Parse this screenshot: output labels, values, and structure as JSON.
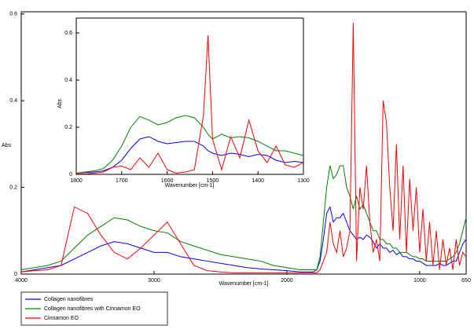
{
  "chart_data": [
    {
      "type": "line",
      "xlabel": "Wavenumber [cm-1]",
      "ylabel": "Abs",
      "x": [
        4000,
        3900,
        3800,
        3700,
        3600,
        3500,
        3400,
        3300,
        3200,
        3100,
        3000,
        2900,
        2800,
        2700,
        2600,
        2500,
        2400,
        2300,
        2200,
        2100,
        2000,
        1900,
        1800,
        1775,
        1750,
        1725,
        1700,
        1675,
        1650,
        1625,
        1600,
        1575,
        1550,
        1525,
        1500,
        1475,
        1450,
        1425,
        1400,
        1375,
        1350,
        1325,
        1300,
        1275,
        1250,
        1225,
        1200,
        1175,
        1150,
        1125,
        1100,
        1075,
        1050,
        1025,
        1000,
        975,
        950,
        925,
        900,
        875,
        850,
        825,
        800,
        775,
        750,
        725,
        700,
        675,
        650
      ],
      "xlim": [
        4000,
        650
      ],
      "xticks": [
        4000,
        3000,
        2000,
        1000,
        650
      ],
      "ylim": [
        0,
        0.605
      ],
      "yticks": [
        0,
        0.2,
        0.4,
        0.6
      ],
      "series": [
        {
          "name": "Collagen nanofibres",
          "color": "#0000ff",
          "values": [
            0.005,
            0.01,
            0.015,
            0.02,
            0.035,
            0.05,
            0.065,
            0.075,
            0.07,
            0.06,
            0.05,
            0.05,
            0.04,
            0.035,
            0.03,
            0.025,
            0.02,
            0.015,
            0.012,
            0.01,
            0.008,
            0.005,
            0.005,
            0.01,
            0.03,
            0.08,
            0.14,
            0.155,
            0.12,
            0.13,
            0.13,
            0.14,
            0.12,
            0.1,
            0.09,
            0.08,
            0.085,
            0.08,
            0.09,
            0.085,
            0.075,
            0.06,
            0.07,
            0.06,
            0.06,
            0.05,
            0.055,
            0.045,
            0.05,
            0.04,
            0.04,
            0.035,
            0.035,
            0.03,
            0.03,
            0.025,
            0.02,
            0.02,
            0.02,
            0.02,
            0.025,
            0.02,
            0.02,
            0.025,
            0.03,
            0.03,
            0.05,
            0.07,
            0.08
          ]
        },
        {
          "name": "Collagen nanofibres with Cinnamon EO",
          "color": "#008000",
          "values": [
            0.01,
            0.015,
            0.02,
            0.03,
            0.06,
            0.09,
            0.11,
            0.13,
            0.125,
            0.11,
            0.1,
            0.095,
            0.075,
            0.065,
            0.055,
            0.045,
            0.04,
            0.035,
            0.03,
            0.02,
            0.015,
            0.01,
            0.01,
            0.01,
            0.04,
            0.12,
            0.2,
            0.25,
            0.22,
            0.23,
            0.25,
            0.25,
            0.2,
            0.18,
            0.15,
            0.18,
            0.15,
            0.16,
            0.14,
            0.12,
            0.1,
            0.1,
            0.08,
            0.08,
            0.07,
            0.07,
            0.06,
            0.06,
            0.05,
            0.05,
            0.05,
            0.045,
            0.04,
            0.04,
            0.035,
            0.035,
            0.03,
            0.03,
            0.03,
            0.03,
            0.03,
            0.03,
            0.03,
            0.035,
            0.04,
            0.05,
            0.07,
            0.1,
            0.13
          ]
        },
        {
          "name": "Cinnamon EO",
          "color": "#ff0000",
          "values": [
            0.005,
            0.008,
            0.01,
            0.02,
            0.155,
            0.14,
            0.09,
            0.05,
            0.035,
            0.06,
            0.09,
            0.12,
            0.07,
            0.02,
            0.008,
            0.005,
            0.003,
            0.003,
            0.003,
            0.003,
            0.003,
            0.003,
            0.003,
            0.003,
            0.01,
            0.03,
            0.05,
            0.12,
            0.07,
            0.05,
            0.1,
            0.04,
            0.06,
            0.1,
            0.58,
            0.03,
            0.2,
            0.15,
            0.25,
            0.12,
            0.05,
            0.08,
            0.03,
            0.4,
            0.35,
            0.2,
            0.1,
            0.3,
            0.08,
            0.25,
            0.05,
            0.22,
            0.1,
            0.2,
            0.05,
            0.15,
            0.03,
            0.12,
            0.02,
            0.1,
            0.01,
            0.08,
            0.02,
            0.06,
            0.01,
            0.08,
            0.02,
            0.05,
            0.04
          ]
        }
      ]
    },
    {
      "type": "line",
      "xlabel": "Wavenumber [cm-1]",
      "ylabel": "Abs",
      "x": [
        1800,
        1780,
        1760,
        1740,
        1720,
        1700,
        1680,
        1660,
        1640,
        1620,
        1600,
        1580,
        1560,
        1540,
        1520,
        1510,
        1500,
        1480,
        1460,
        1440,
        1420,
        1400,
        1380,
        1360,
        1340,
        1320,
        1300
      ],
      "xlim": [
        1800,
        1300
      ],
      "xticks": [
        1800,
        1700,
        1600,
        1500,
        1400,
        1300
      ],
      "ylim": [
        0,
        0.663
      ],
      "yticks": [
        0,
        0.2,
        0.4,
        0.6
      ],
      "series": [
        {
          "color": "#0000ff",
          "values": [
            0.005,
            0.008,
            0.01,
            0.015,
            0.03,
            0.06,
            0.11,
            0.15,
            0.16,
            0.14,
            0.13,
            0.135,
            0.14,
            0.14,
            0.12,
            0.1,
            0.09,
            0.08,
            0.09,
            0.085,
            0.075,
            0.085,
            0.08,
            0.06,
            0.05,
            0.055,
            0.05
          ]
        },
        {
          "color": "#008000",
          "values": [
            0.005,
            0.01,
            0.015,
            0.025,
            0.06,
            0.12,
            0.2,
            0.245,
            0.23,
            0.21,
            0.22,
            0.24,
            0.25,
            0.24,
            0.2,
            0.17,
            0.15,
            0.17,
            0.155,
            0.16,
            0.155,
            0.14,
            0.12,
            0.1,
            0.1,
            0.09,
            0.08
          ]
        },
        {
          "color": "#ff0000",
          "values": [
            0.002,
            0.002,
            0.005,
            0.01,
            0.03,
            0.035,
            0.02,
            0.07,
            0.03,
            0.09,
            0.02,
            0.005,
            0.01,
            0.02,
            0.25,
            0.59,
            0.15,
            0.02,
            0.16,
            0.07,
            0.23,
            0.1,
            0.05,
            0.12,
            0.04,
            0.03,
            0.05
          ]
        }
      ]
    }
  ]
}
